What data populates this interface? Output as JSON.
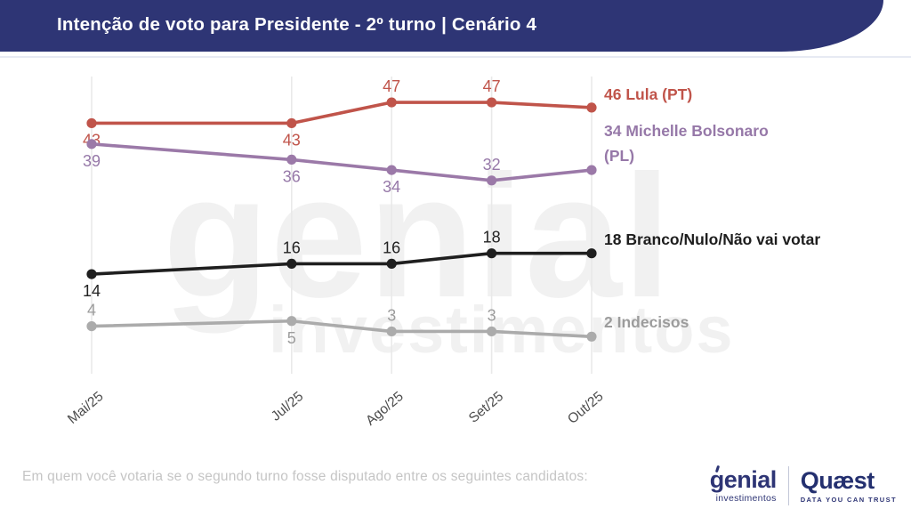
{
  "header": {
    "title": "Intenção de voto para Presidente - 2º turno | Cenário 4"
  },
  "watermark": {
    "line1": "genial",
    "line2": "investimentos"
  },
  "chart_data": {
    "type": "line",
    "title": "Intenção de voto para Presidente - 2º turno | Cenário 4",
    "categories": [
      "Mai/25",
      "Jul/25",
      "Ago/25",
      "Set/25",
      "Out/25"
    ],
    "x_numeric": [
      5,
      7,
      8,
      9,
      10
    ],
    "xlabel": "",
    "ylabel": "",
    "ylim": [
      0,
      50
    ],
    "grid": "vertical-only",
    "legend_position": "right-of-last-point",
    "colors": {
      "lula": "#c0544a",
      "michelle": "#9b79a8",
      "branco": "#1f1f1f",
      "indecisos": "#ababab"
    },
    "series": [
      {
        "name": "Lula (PT)",
        "color": "#c0544a",
        "values": [
          43,
          43,
          47,
          47,
          46
        ],
        "label_sides": [
          "below",
          "below",
          "above",
          "above",
          null
        ],
        "end_label": "46 Lula (PT)"
      },
      {
        "name": "Michelle Bolsonaro (PL)",
        "color": "#9b79a8",
        "label_color": "#9678a8",
        "values": [
          39,
          36,
          34,
          32,
          34
        ],
        "label_sides": [
          "below",
          "below",
          "below",
          "above",
          null
        ],
        "end_label": "34 Michelle Bolsonaro (PL)"
      },
      {
        "name": "Branco/Nulo/Não vai votar",
        "color": "#1f1f1f",
        "label_color": "#222222",
        "values": [
          14,
          16,
          16,
          18,
          18
        ],
        "label_sides": [
          "below",
          "above",
          "above",
          "above",
          null
        ],
        "end_label": "18 Branco/Nulo/Não vai votar"
      },
      {
        "name": "Indecisos",
        "color": "#ababab",
        "label_color": "#9c9c9c",
        "values": [
          4,
          5,
          3,
          3,
          2
        ],
        "label_sides": [
          "above",
          "below",
          "above",
          "above",
          null
        ],
        "end_label": "2 Indecisos"
      }
    ]
  },
  "footer": {
    "question": "Em quem você votaria se o segundo turno fosse disputado entre os seguintes candidatos:",
    "genial_logo": {
      "name": "genial",
      "sub": "investimentos"
    },
    "quaest_logo": {
      "name": "Quæst",
      "tagline": "DATA YOU CAN TRUST"
    }
  }
}
